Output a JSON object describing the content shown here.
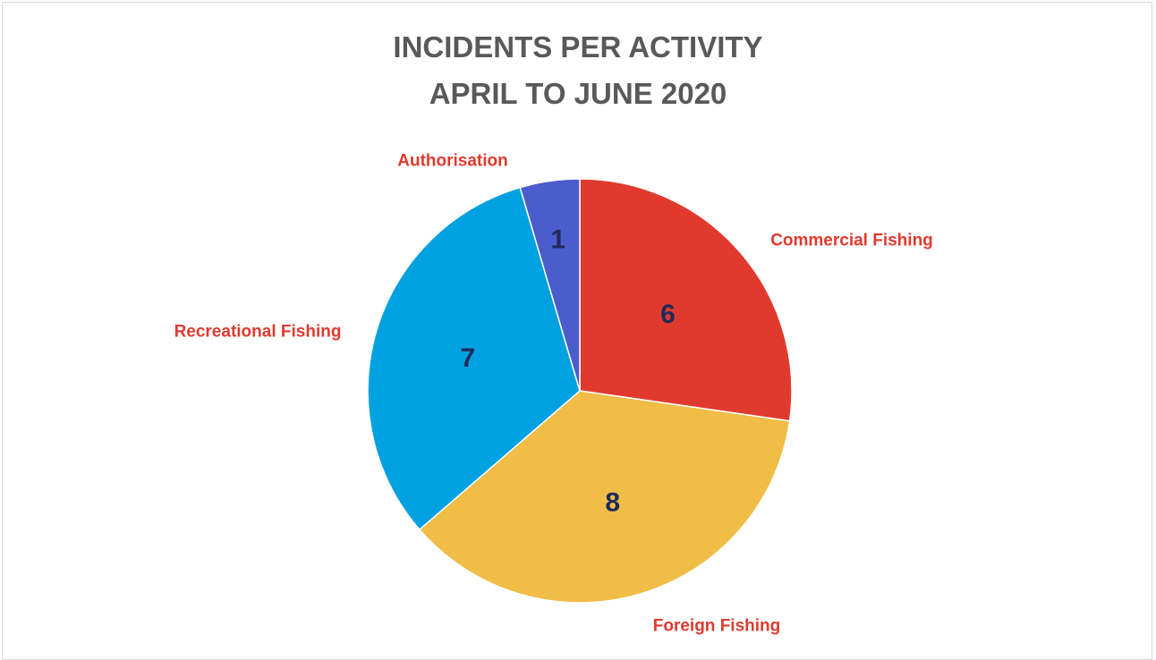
{
  "chart_data": {
    "type": "pie",
    "title_lines": [
      "INCIDENTS PER ACTIVITY",
      "APRIL TO JUNE 2020"
    ],
    "start_angle_deg": 0,
    "direction": "clockwise",
    "legend": "none",
    "slices": [
      {
        "category": "Commercial Fishing",
        "value": 6,
        "color": "#e03a2e"
      },
      {
        "category": "Foreign Fishing",
        "value": 8,
        "color": "#f0bd47"
      },
      {
        "category": "Recreational Fishing",
        "value": 7,
        "color": "#00a1e0"
      },
      {
        "category": "Authorisation",
        "value": 1,
        "color": "#4b5ccc"
      }
    ],
    "label_color": "#e03a2e",
    "value_label_color": "#1f2a5a"
  }
}
